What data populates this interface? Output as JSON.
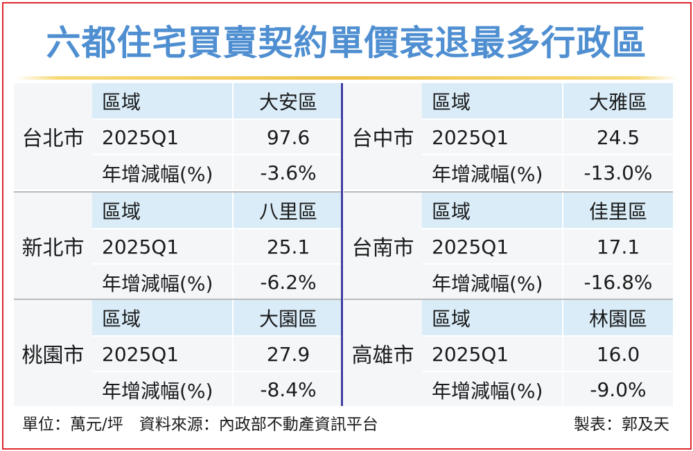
{
  "title": "六都住宅買賣契約單價衰退最多行政區",
  "row_labels": {
    "district": "區域",
    "period": "2025Q1",
    "change": "年增減幅(%)"
  },
  "cities": [
    {
      "city": "台北市",
      "district": "大安區",
      "price": "97.6",
      "change": "-3.6%"
    },
    {
      "city": "台中市",
      "district": "大雅區",
      "price": "24.5",
      "change": "-13.0%"
    },
    {
      "city": "新北市",
      "district": "八里區",
      "price": "25.1",
      "change": "-6.2%"
    },
    {
      "city": "台南市",
      "district": "佳里區",
      "price": "17.1",
      "change": "-16.8%"
    },
    {
      "city": "桃園市",
      "district": "大園區",
      "price": "27.9",
      "change": "-8.4%"
    },
    {
      "city": "高雄市",
      "district": "林園區",
      "price": "16.0",
      "change": "-9.0%"
    }
  ],
  "footer": {
    "unit_and_source": "單位：萬元/坪　資料來源：內政部不動產資訊平台",
    "credit": "製表：郭及天"
  },
  "colors": {
    "title": "#4f8fd1",
    "frame": "#e0262d",
    "header_row": "#d9ecf8",
    "body_bg": "#f4f6f8",
    "divider": "#3d3aa0",
    "rule": "#eec34a"
  }
}
